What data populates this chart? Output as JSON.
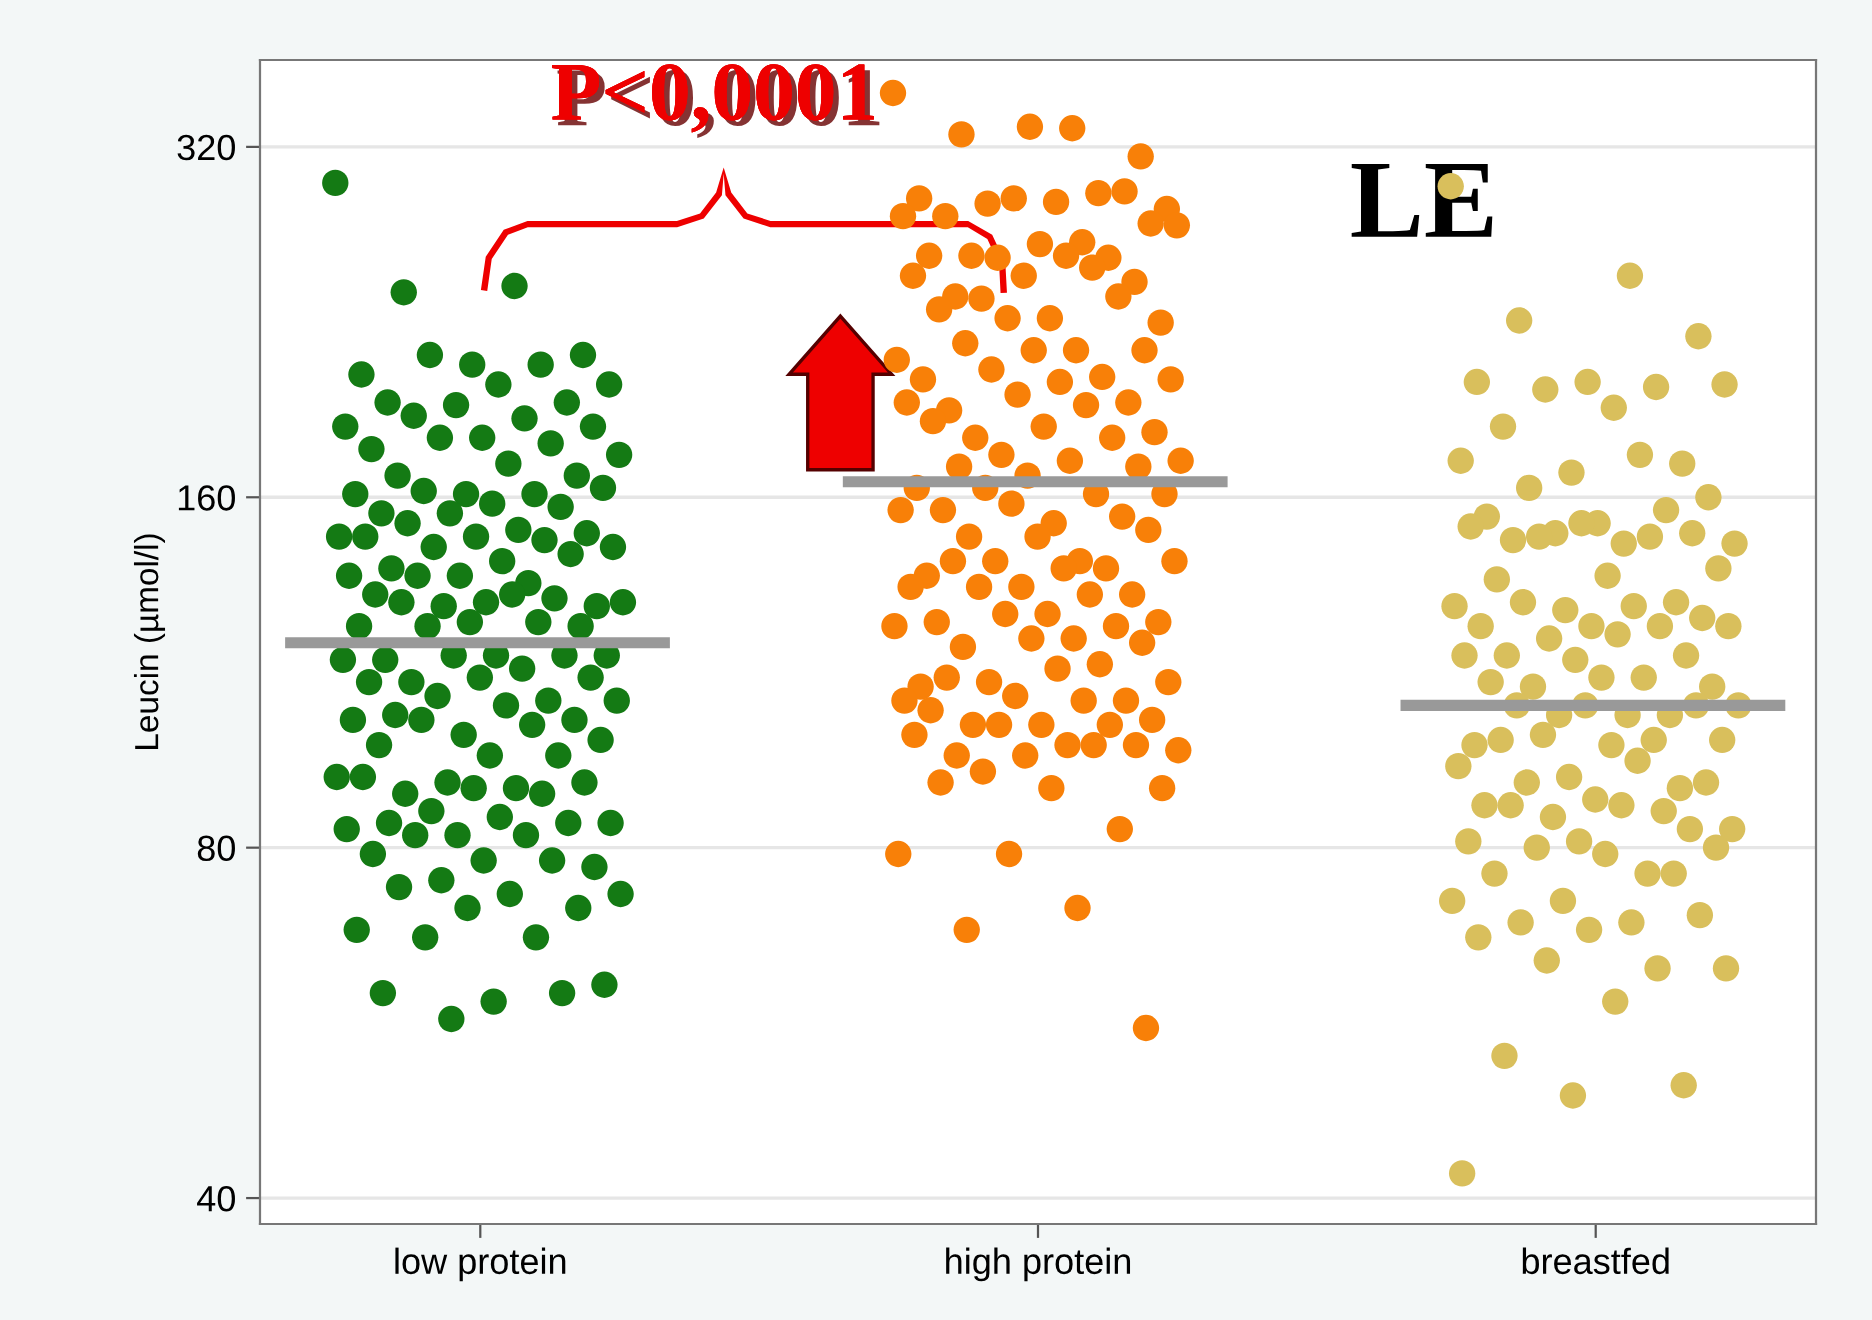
{
  "chart_data": {
    "type": "scatter",
    "ylabel": "Leucin (µmol/l)",
    "annotations": [
      "P<0,0001",
      "LE"
    ],
    "categories": [
      "low protein",
      "high protein",
      "breastfed"
    ],
    "ylim": [
      38,
      380
    ],
    "yticks": [
      40,
      80,
      160,
      320
    ],
    "log": "y",
    "grid": "y",
    "marker": "circle",
    "series": [
      {
        "color": "#147a14",
        "x": [
          "low protein",
          "low protein",
          "low protein",
          "low protein",
          "low protein",
          "low protein",
          "low protein",
          "low protein",
          "low protein",
          "low protein",
          "low protein",
          "low protein",
          "low protein",
          "low protein",
          "low protein",
          "low protein",
          "low protein",
          "low protein",
          "low protein",
          "low protein",
          "low protein",
          "low protein",
          "low protein",
          "low protein",
          "low protein",
          "low protein",
          "low protein",
          "low protein",
          "low protein",
          "low protein",
          "low protein",
          "low protein",
          "low protein",
          "low protein",
          "low protein",
          "low protein",
          "low protein",
          "low protein",
          "low protein",
          "low protein",
          "low protein",
          "low protein",
          "low protein",
          "low protein",
          "low protein",
          "low protein",
          "low protein",
          "low protein",
          "low protein",
          "low protein",
          "low protein",
          "low protein",
          "low protein",
          "low protein",
          "low protein",
          "low protein",
          "low protein",
          "low protein",
          "low protein",
          "low protein",
          "low protein",
          "low protein",
          "low protein",
          "low protein",
          "low protein",
          "low protein",
          "low protein",
          "low protein",
          "low protein",
          "low protein",
          "low protein",
          "low protein",
          "low protein",
          "low protein",
          "low protein",
          "low protein",
          "low protein",
          "low protein",
          "low protein",
          "low protein",
          "low protein",
          "low protein",
          "low protein",
          "low protein",
          "low protein",
          "low protein",
          "low protein",
          "low protein",
          "low protein",
          "low protein",
          "low protein",
          "low protein",
          "low protein",
          "low protein",
          "low protein",
          "low protein",
          "low protein",
          "low protein",
          "low protein",
          "low protein",
          "low protein",
          "low protein",
          "low protein",
          "low protein",
          "low protein",
          "low protein",
          "low protein",
          "low protein",
          "low protein",
          "low protein",
          "low protein",
          "low protein",
          "low protein",
          "low protein",
          "low protein",
          "low protein",
          "low protein",
          "low protein",
          "low protein",
          "low protein",
          "low protein",
          "low protein",
          "low protein"
        ],
        "values": [
          298,
          243,
          240,
          212,
          208,
          204,
          208,
          212,
          200,
          200,
          193,
          193,
          192,
          184,
          187,
          188,
          184,
          180,
          176,
          178,
          180,
          174,
          171,
          167,
          167,
          161,
          161,
          161,
          162,
          163,
          158,
          155,
          157,
          155,
          148,
          150,
          152,
          149,
          148,
          148,
          147,
          145,
          145,
          141,
          139,
          143,
          137,
          137,
          135,
          137,
          129,
          130,
          132,
          131,
          129,
          130,
          132,
          130,
          124,
          125,
          124,
          125,
          124,
          117,
          117,
          116,
          117,
          117,
          116,
          114,
          111,
          112,
          112,
          111,
          107,
          108,
          107,
          106,
          104,
          103,
          100,
          103,
          102,
          103,
          99,
          96,
          98,
          96,
          91,
          92,
          90,
          89,
          91,
          90,
          92,
          89,
          86,
          84,
          85,
          84,
          84,
          82,
          83,
          82,
          82,
          77,
          78,
          79,
          78,
          75,
          73,
          73,
          74,
          71,
          71,
          68,
          67,
          67,
          61,
          59,
          60,
          60,
          57
        ]
      },
      {
        "color": "#f88008",
        "x": [
          "high protein",
          "high protein",
          "high protein",
          "high protein",
          "high protein",
          "high protein",
          "high protein",
          "high protein",
          "high protein",
          "high protein",
          "high protein",
          "high protein",
          "high protein",
          "high protein",
          "high protein",
          "high protein",
          "high protein",
          "high protein",
          "high protein",
          "high protein",
          "high protein",
          "high protein",
          "high protein",
          "high protein",
          "high protein",
          "high protein",
          "high protein",
          "high protein",
          "high protein",
          "high protein",
          "high protein",
          "high protein",
          "high protein",
          "high protein",
          "high protein",
          "high protein",
          "high protein",
          "high protein",
          "high protein",
          "high protein",
          "high protein",
          "high protein",
          "high protein",
          "high protein",
          "high protein",
          "high protein",
          "high protein",
          "high protein",
          "high protein",
          "high protein",
          "high protein",
          "high protein",
          "high protein",
          "high protein",
          "high protein",
          "high protein",
          "high protein",
          "high protein",
          "high protein",
          "high protein",
          "high protein",
          "high protein",
          "high protein",
          "high protein",
          "high protein",
          "high protein",
          "high protein",
          "high protein",
          "high protein",
          "high protein",
          "high protein",
          "high protein",
          "high protein",
          "high protein",
          "high protein",
          "high protein",
          "high protein",
          "high protein",
          "high protein",
          "high protein",
          "high protein",
          "high protein",
          "high protein",
          "high protein",
          "high protein",
          "high protein",
          "high protein",
          "high protein",
          "high protein",
          "high protein",
          "high protein",
          "high protein",
          "high protein",
          "high protein",
          "high protein",
          "high protein",
          "high protein",
          "high protein",
          "high protein",
          "high protein",
          "high protein",
          "high protein",
          "high protein",
          "high protein",
          "high protein",
          "high protein",
          "high protein",
          "high protein",
          "high protein",
          "high protein",
          "high protein",
          "high protein",
          "high protein",
          "high protein",
          "high protein",
          "high protein",
          "high protein",
          "high protein",
          "high protein",
          "high protein",
          "high protein",
          "high protein",
          "high protein",
          "high protein",
          "high protein",
          "high protein",
          "high protein"
        ],
        "values": [
          356,
          332,
          328,
          314,
          333,
          289,
          292,
          286,
          283,
          287,
          279,
          293,
          289,
          279,
          265,
          258,
          275,
          264,
          258,
          257,
          257,
          274,
          258,
          238,
          245,
          248,
          248,
          252,
          237,
          226,
          228,
          232,
          238,
          228,
          210,
          214,
          217,
          214,
          214,
          202,
          203,
          206,
          202,
          201,
          190,
          193,
          196,
          193,
          192,
          180,
          182,
          184,
          186,
          180,
          174,
          172,
          172,
          170,
          170,
          167,
          163,
          161,
          163,
          161,
          152,
          156,
          154,
          158,
          156,
          141,
          148,
          150,
          148,
          137,
          139,
          141,
          141,
          139,
          141,
          132,
          134,
          134,
          132,
          134,
          125,
          127,
          125,
          124,
          127,
          124,
          121,
          119,
          120,
          121,
          110,
          115,
          111,
          111,
          114,
          112,
          107,
          108,
          107,
          107,
          102,
          103,
          102,
          105,
          102,
          102,
          97,
          98,
          96,
          98,
          96,
          100,
          98,
          93,
          90,
          90,
          91,
          83,
          79,
          79,
          71,
          68,
          56
        ]
      },
      {
        "color": "#d9bf5c",
        "x": [
          "breastfed",
          "breastfed",
          "breastfed",
          "breastfed",
          "breastfed",
          "breastfed",
          "breastfed",
          "breastfed",
          "breastfed",
          "breastfed",
          "breastfed",
          "breastfed",
          "breastfed",
          "breastfed",
          "breastfed",
          "breastfed",
          "breastfed",
          "breastfed",
          "breastfed",
          "breastfed",
          "breastfed",
          "breastfed",
          "breastfed",
          "breastfed",
          "breastfed",
          "breastfed",
          "breastfed",
          "breastfed",
          "breastfed",
          "breastfed",
          "breastfed",
          "breastfed",
          "breastfed",
          "breastfed",
          "breastfed",
          "breastfed",
          "breastfed",
          "breastfed",
          "breastfed",
          "breastfed",
          "breastfed",
          "breastfed",
          "breastfed",
          "breastfed",
          "breastfed",
          "breastfed",
          "breastfed",
          "breastfed",
          "breastfed",
          "breastfed",
          "breastfed",
          "breastfed",
          "breastfed",
          "breastfed",
          "breastfed",
          "breastfed",
          "breastfed",
          "breastfed",
          "breastfed",
          "breastfed",
          "breastfed",
          "breastfed",
          "breastfed",
          "breastfed",
          "breastfed",
          "breastfed",
          "breastfed",
          "breastfed",
          "breastfed",
          "breastfed",
          "breastfed",
          "breastfed",
          "breastfed",
          "breastfed",
          "breastfed",
          "breastfed",
          "breastfed",
          "breastfed",
          "breastfed",
          "breastfed",
          "breastfed",
          "breastfed",
          "breastfed",
          "breastfed",
          "breastfed",
          "breastfed",
          "breastfed",
          "breastfed",
          "breastfed",
          "breastfed",
          "breastfed",
          "breastfed",
          "breastfed",
          "breastfed",
          "breastfed",
          "breastfed",
          "breastfed",
          "breastfed",
          "breastfed",
          "breastfed",
          "breastfed",
          "breastfed",
          "breastfed"
        ],
        "values": [
          296,
          248,
          227,
          220,
          201,
          201,
          199,
          198,
          200,
          191,
          184,
          171,
          168,
          172,
          174,
          163,
          160,
          152,
          154,
          156,
          149,
          146,
          146,
          147,
          149,
          152,
          151,
          148,
          148,
          139,
          137,
          136,
          130,
          128,
          129,
          129,
          130,
          126,
          124,
          124,
          124,
          121,
          124,
          122,
          117,
          117,
          116,
          117,
          112,
          110,
          110,
          112,
          111,
          104,
          104,
          106,
          104,
          106,
          106,
          106,
          98,
          99,
          100,
          99,
          98,
          99,
          90,
          92,
          94,
          95,
          91,
          91,
          88,
          87,
          86,
          85,
          83,
          87,
          87,
          83,
          81,
          81,
          76,
          80,
          80,
          79,
          76,
          76,
          72,
          72,
          69,
          69,
          70,
          68,
          67,
          63,
          64,
          63,
          59,
          53,
          50,
          49,
          42
        ]
      }
    ],
    "ref_lines": [
      {
        "axis": "y",
        "value": 120,
        "color": "#999999"
      },
      {
        "axis": "y",
        "value": 165,
        "color": "#999999"
      },
      {
        "axis": "y",
        "value": 106,
        "color": "#999999"
      }
    ]
  }
}
